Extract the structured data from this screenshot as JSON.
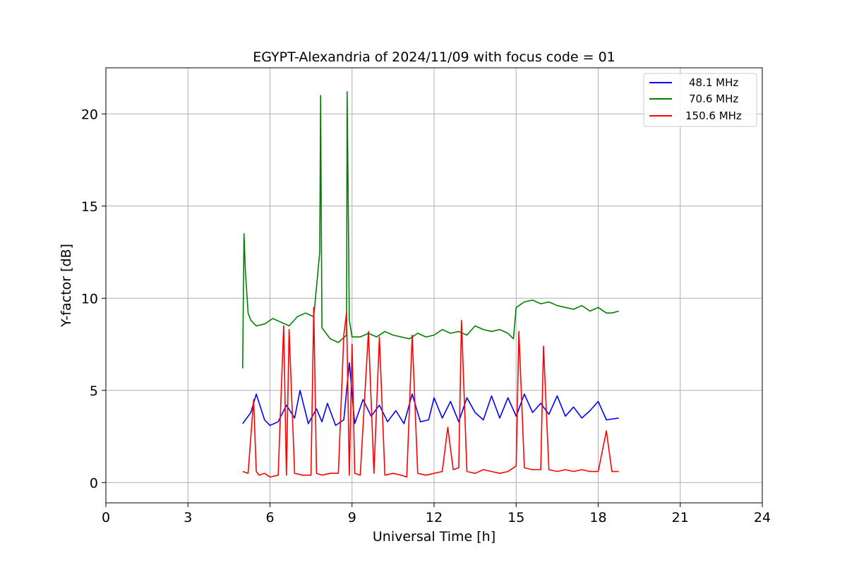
{
  "chart_data": {
    "type": "line",
    "title": "EGYPT-Alexandria of 2024/11/09 with focus code = 01",
    "xlabel": "Universal Time [h]",
    "ylabel": "Y-factor [dB]",
    "xlim": [
      0,
      24
    ],
    "ylim": [
      -1.1,
      22.5
    ],
    "x_ticks": [
      0,
      3,
      6,
      9,
      12,
      15,
      18,
      21,
      24
    ],
    "y_ticks": [
      0,
      5,
      10,
      15,
      20
    ],
    "grid": true,
    "legend_position": "top-right",
    "series": [
      {
        "name": "48.1 MHz",
        "color": "#0000ff",
        "x": [
          5.0,
          5.3,
          5.5,
          5.8,
          6.0,
          6.3,
          6.6,
          6.9,
          7.1,
          7.4,
          7.7,
          7.9,
          8.1,
          8.4,
          8.7,
          8.9,
          9.1,
          9.4,
          9.7,
          10.0,
          10.3,
          10.6,
          10.9,
          11.2,
          11.5,
          11.8,
          12.0,
          12.3,
          12.6,
          12.9,
          13.2,
          13.5,
          13.8,
          14.1,
          14.4,
          14.7,
          15.0,
          15.3,
          15.6,
          15.9,
          16.2,
          16.5,
          16.8,
          17.1,
          17.4,
          17.7,
          18.0,
          18.3,
          18.75
        ],
        "values": [
          3.2,
          3.8,
          4.8,
          3.4,
          3.1,
          3.3,
          4.2,
          3.5,
          5.0,
          3.2,
          4.0,
          3.3,
          4.3,
          3.1,
          3.4,
          6.5,
          3.2,
          4.5,
          3.6,
          4.2,
          3.3,
          3.9,
          3.2,
          4.8,
          3.3,
          3.4,
          4.6,
          3.5,
          4.4,
          3.3,
          4.6,
          3.8,
          3.4,
          4.7,
          3.5,
          4.6,
          3.6,
          4.8,
          3.8,
          4.3,
          3.7,
          4.7,
          3.6,
          4.1,
          3.5,
          3.9,
          4.4,
          3.4,
          3.5
        ]
      },
      {
        "name": "70.6 MHz",
        "color": "#008000",
        "x": [
          5.0,
          5.05,
          5.1,
          5.2,
          5.3,
          5.5,
          5.8,
          6.1,
          6.4,
          6.7,
          7.0,
          7.3,
          7.6,
          7.82,
          7.85,
          7.9,
          8.2,
          8.5,
          8.8,
          8.82,
          8.85,
          8.9,
          9.0,
          9.3,
          9.6,
          9.9,
          10.2,
          10.5,
          10.8,
          11.1,
          11.4,
          11.7,
          12.0,
          12.3,
          12.6,
          12.9,
          13.2,
          13.5,
          13.8,
          14.1,
          14.4,
          14.7,
          14.9,
          15.0,
          15.3,
          15.6,
          15.9,
          16.2,
          16.5,
          16.8,
          17.1,
          17.4,
          17.7,
          18.0,
          18.3,
          18.5,
          18.75
        ],
        "values": [
          6.2,
          13.5,
          11.5,
          9.2,
          8.8,
          8.5,
          8.6,
          8.9,
          8.7,
          8.5,
          9.0,
          9.2,
          9.0,
          12.5,
          21.0,
          8.4,
          7.8,
          7.6,
          8.0,
          21.2,
          17.0,
          8.8,
          7.9,
          7.9,
          8.1,
          7.9,
          8.2,
          8.0,
          7.9,
          7.8,
          8.1,
          7.9,
          8.0,
          8.3,
          8.1,
          8.2,
          8.0,
          8.5,
          8.3,
          8.2,
          8.3,
          8.1,
          7.8,
          9.5,
          9.8,
          9.9,
          9.7,
          9.8,
          9.6,
          9.5,
          9.4,
          9.6,
          9.3,
          9.5,
          9.2,
          9.2,
          9.3
        ]
      },
      {
        "name": "150.6 MHz",
        "color": "#ff0000",
        "x": [
          5.0,
          5.2,
          5.4,
          5.5,
          5.6,
          5.8,
          6.0,
          6.3,
          6.5,
          6.6,
          6.7,
          6.9,
          7.2,
          7.5,
          7.6,
          7.7,
          7.9,
          8.2,
          8.5,
          8.7,
          8.8,
          8.9,
          9.0,
          9.1,
          9.3,
          9.6,
          9.8,
          10.0,
          10.2,
          10.5,
          10.8,
          11.0,
          11.2,
          11.4,
          11.7,
          12.0,
          12.3,
          12.5,
          12.7,
          12.9,
          13.0,
          13.2,
          13.5,
          13.8,
          14.1,
          14.4,
          14.7,
          15.0,
          15.1,
          15.3,
          15.6,
          15.9,
          16.0,
          16.2,
          16.5,
          16.8,
          17.1,
          17.4,
          17.7,
          18.0,
          18.3,
          18.5,
          18.75
        ],
        "values": [
          0.6,
          0.5,
          4.5,
          0.6,
          0.4,
          0.5,
          0.3,
          0.4,
          8.5,
          0.4,
          8.3,
          0.5,
          0.4,
          0.4,
          9.5,
          0.5,
          0.4,
          0.5,
          0.5,
          8.0,
          9.2,
          0.4,
          7.5,
          0.5,
          0.4,
          8.2,
          0.5,
          7.9,
          0.4,
          0.5,
          0.4,
          0.3,
          8.0,
          0.5,
          0.4,
          0.5,
          0.6,
          3.0,
          0.7,
          0.8,
          8.8,
          0.6,
          0.5,
          0.7,
          0.6,
          0.5,
          0.6,
          0.9,
          8.2,
          0.8,
          0.7,
          0.7,
          7.4,
          0.7,
          0.6,
          0.7,
          0.6,
          0.7,
          0.6,
          0.6,
          2.8,
          0.6,
          0.6
        ]
      }
    ]
  }
}
